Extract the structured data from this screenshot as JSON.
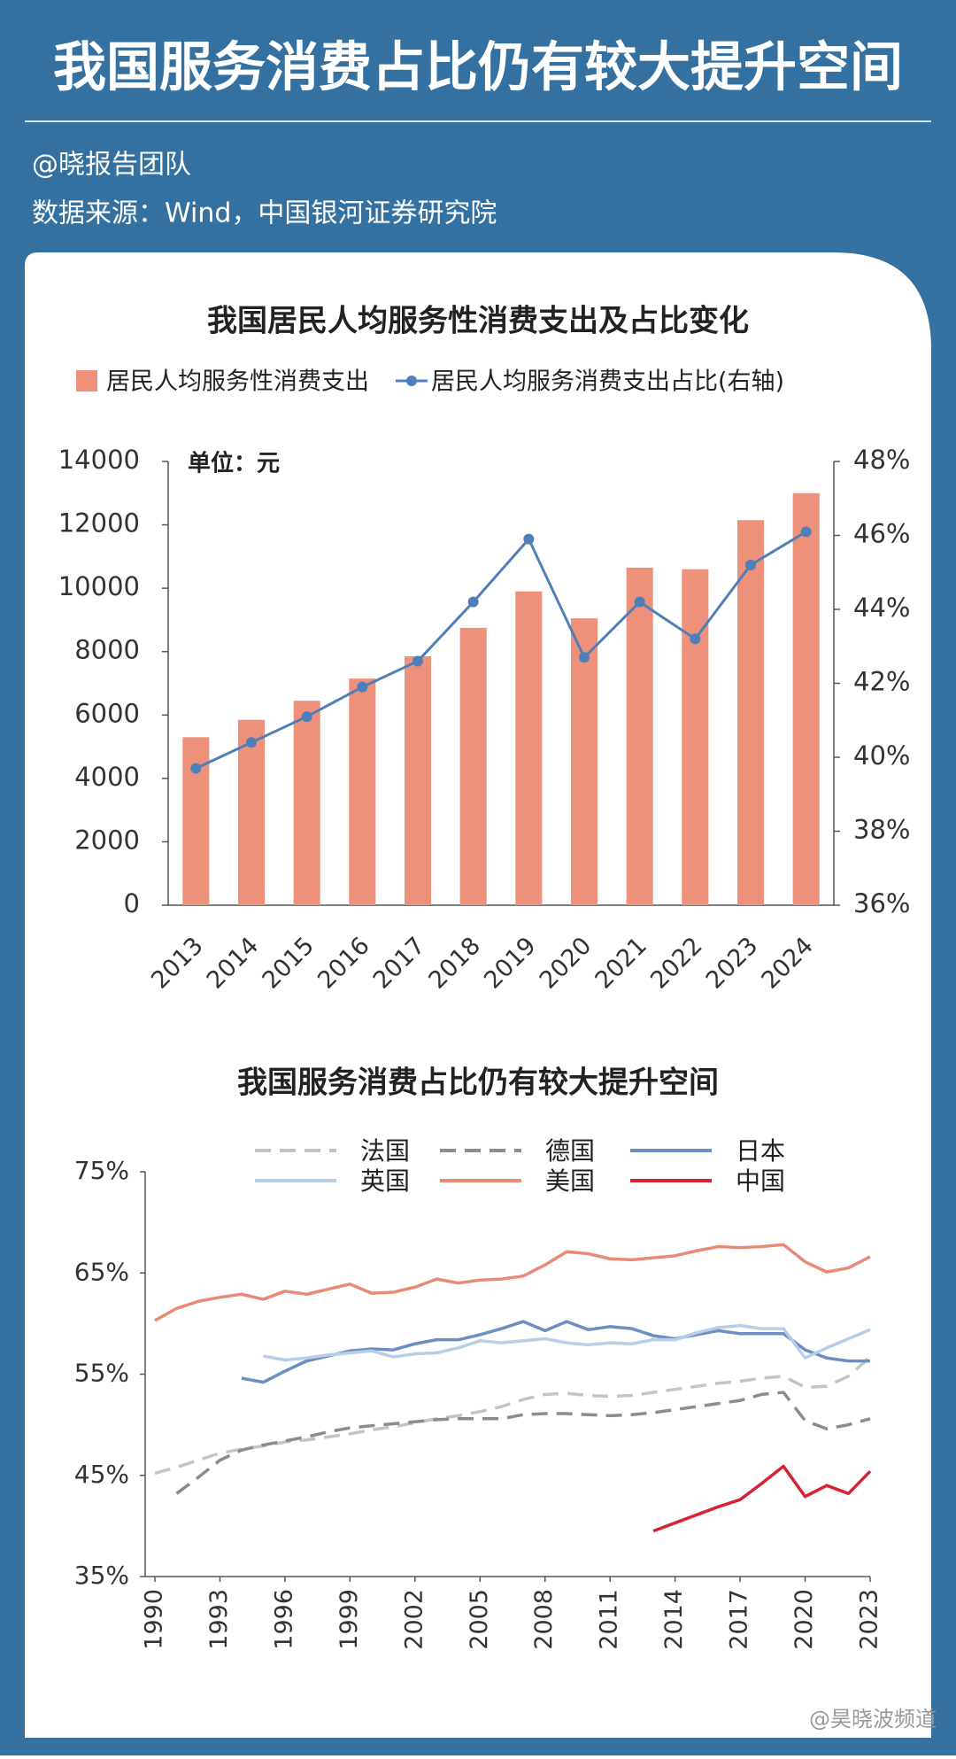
{
  "header": {
    "title": "我国服务消费占比仍有较大提升空间",
    "author": "@晓报告团队",
    "source": "数据来源：Wind，中国银河证券研究院"
  },
  "watermark": "@昊晓波频道",
  "chart_data": [
    {
      "type": "bar",
      "title": "我国居民人均服务性消费支出及占比变化",
      "annotation": "单位：元",
      "categories": [
        "2013",
        "2014",
        "2015",
        "2016",
        "2017",
        "2018",
        "2019",
        "2020",
        "2021",
        "2022",
        "2023",
        "2024"
      ],
      "series": [
        {
          "name": "居民人均服务性消费支出",
          "type": "bar",
          "color": "#ee917a",
          "values": [
            5300,
            5850,
            6450,
            7150,
            7850,
            8750,
            9900,
            9050,
            10650,
            10600,
            12150,
            13000
          ]
        },
        {
          "name": "居民人均服务消费支出占比(右轴)",
          "type": "line",
          "axis": "y2",
          "color": "#4f7fb8",
          "values": [
            39.7,
            40.4,
            41.1,
            41.9,
            42.6,
            44.2,
            45.9,
            42.7,
            44.2,
            43.2,
            45.2,
            46.1
          ]
        }
      ],
      "ylim": [
        0,
        14000
      ],
      "yticks": [
        0,
        2000,
        4000,
        6000,
        8000,
        10000,
        12000,
        14000
      ],
      "y2lim": [
        36,
        48
      ],
      "y2ticks": [
        {
          "value": 36,
          "label": "36%"
        },
        {
          "value": 38,
          "label": "38%"
        },
        {
          "value": 40,
          "label": "40%"
        },
        {
          "value": 42,
          "label": "42%"
        },
        {
          "value": 44,
          "label": "44%"
        },
        {
          "value": 46,
          "label": "46%"
        },
        {
          "value": 48,
          "label": "48%"
        }
      ],
      "legend": "top",
      "grid": false
    },
    {
      "type": "line",
      "title": "我国服务消费占比仍有较大提升空间",
      "x": [
        1990,
        1991,
        1992,
        1993,
        1994,
        1995,
        1996,
        1997,
        1998,
        1999,
        2000,
        2001,
        2002,
        2003,
        2004,
        2005,
        2006,
        2007,
        2008,
        2009,
        2010,
        2011,
        2012,
        2013,
        2014,
        2015,
        2016,
        2017,
        2018,
        2019,
        2020,
        2021,
        2022,
        2023
      ],
      "series": [
        {
          "name": "法国",
          "color": "#c4c4c4",
          "dashed": true,
          "values": [
            45.2,
            45.8,
            46.5,
            47.2,
            47.6,
            47.9,
            48.3,
            48.5,
            48.8,
            49.1,
            49.5,
            49.8,
            50.2,
            50.6,
            50.9,
            51.3,
            51.8,
            52.5,
            53.0,
            53.1,
            52.9,
            52.8,
            52.9,
            53.2,
            53.5,
            53.8,
            54.1,
            54.3,
            54.6,
            54.8,
            53.7,
            53.8,
            54.8,
            56.7
          ]
        },
        {
          "name": "德国",
          "color": "#8c8c8c",
          "dashed": true,
          "values": [
            null,
            43.2,
            44.8,
            46.5,
            47.5,
            48.0,
            48.4,
            48.8,
            49.3,
            49.7,
            49.9,
            50.1,
            50.3,
            50.5,
            50.6,
            50.6,
            50.6,
            51.0,
            51.1,
            51.1,
            51.0,
            50.9,
            51.0,
            51.2,
            51.5,
            51.8,
            52.1,
            52.4,
            53.0,
            53.2,
            50.4,
            49.6,
            50.0,
            50.6
          ]
        },
        {
          "name": "日本",
          "color": "#6a8fc0",
          "dashed": false,
          "values": [
            null,
            null,
            null,
            null,
            54.6,
            54.2,
            55.3,
            56.3,
            56.8,
            57.3,
            57.5,
            57.4,
            58.0,
            58.4,
            58.4,
            58.9,
            59.5,
            60.2,
            59.3,
            60.2,
            59.4,
            59.7,
            59.5,
            58.8,
            58.5,
            58.9,
            59.3,
            59.0,
            59.0,
            59.0,
            57.4,
            56.6,
            56.3,
            56.3
          ]
        },
        {
          "name": "英国",
          "color": "#b8cde6",
          "dashed": false,
          "values": [
            null,
            null,
            null,
            null,
            null,
            56.8,
            56.4,
            56.6,
            56.9,
            57.1,
            57.3,
            56.7,
            57.0,
            57.1,
            57.6,
            58.3,
            58.1,
            58.3,
            58.5,
            58.1,
            57.9,
            58.1,
            58.0,
            58.4,
            58.4,
            59.1,
            59.6,
            59.8,
            59.5,
            59.5,
            56.6,
            57.6,
            58.5,
            59.4
          ]
        },
        {
          "name": "美国",
          "color": "#e88a74",
          "dashed": false,
          "values": [
            60.3,
            61.5,
            62.2,
            62.6,
            62.9,
            62.4,
            63.2,
            62.9,
            63.4,
            63.9,
            63.0,
            63.1,
            63.6,
            64.4,
            64.0,
            64.3,
            64.4,
            64.7,
            65.8,
            67.1,
            66.9,
            66.4,
            66.3,
            66.5,
            66.7,
            67.2,
            67.6,
            67.5,
            67.6,
            67.8,
            66.1,
            65.1,
            65.5,
            66.6
          ]
        },
        {
          "name": "中国",
          "color": "#d6232f",
          "dashed": false,
          "values": [
            null,
            null,
            null,
            null,
            null,
            null,
            null,
            null,
            null,
            null,
            null,
            null,
            null,
            null,
            null,
            null,
            null,
            null,
            null,
            null,
            null,
            null,
            null,
            39.5,
            40.3,
            41.1,
            41.9,
            42.6,
            44.2,
            45.9,
            42.9,
            44.0,
            43.2,
            45.4
          ]
        }
      ],
      "xlim": [
        1990,
        2023
      ],
      "xticks": [
        1990,
        1993,
        1996,
        1999,
        2002,
        2005,
        2008,
        2011,
        2014,
        2017,
        2020,
        2023
      ],
      "ylim": [
        35,
        75
      ],
      "yticks": [
        {
          "value": 35,
          "label": "35%"
        },
        {
          "value": 45,
          "label": "45%"
        },
        {
          "value": 55,
          "label": "55%"
        },
        {
          "value": 65,
          "label": "65%"
        },
        {
          "value": 75,
          "label": "75%"
        }
      ],
      "legend": "top",
      "grid": false
    }
  ]
}
